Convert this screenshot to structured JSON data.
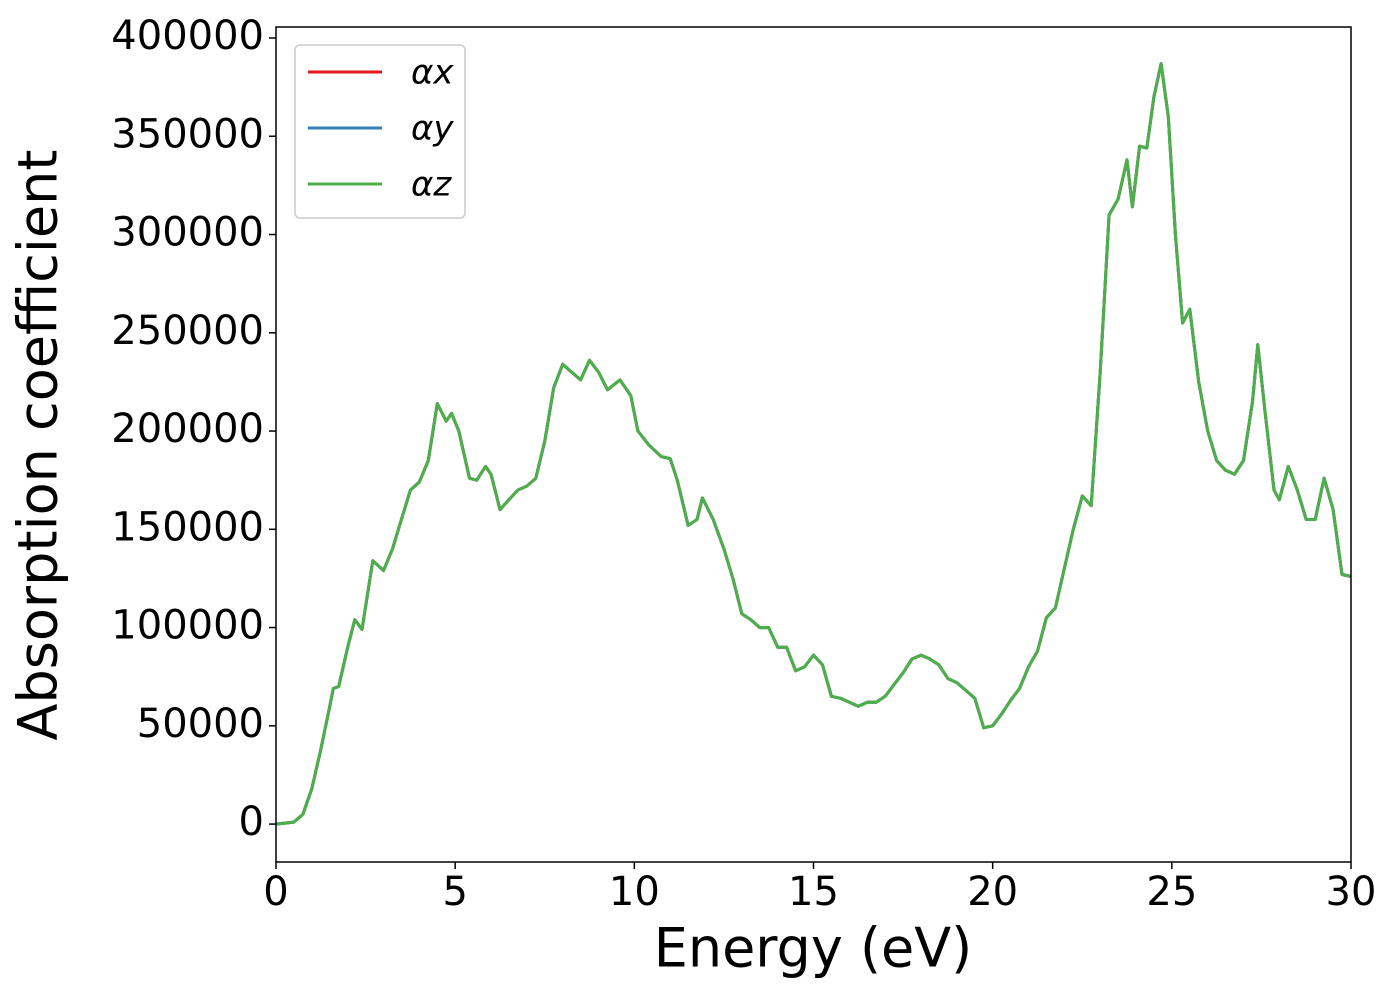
{
  "chart_data": {
    "type": "line",
    "x_label": "Energy (eV)",
    "y_label": "Absorption coefficient",
    "x": [
      0,
      0.5,
      0.75,
      1.0,
      1.25,
      1.5,
      1.6,
      1.75,
      2.0,
      2.2,
      2.4,
      2.7,
      3.0,
      3.25,
      3.5,
      3.75,
      4.0,
      4.25,
      4.5,
      4.75,
      4.9,
      5.1,
      5.4,
      5.6,
      5.85,
      6.0,
      6.25,
      6.5,
      6.75,
      7.0,
      7.25,
      7.5,
      7.75,
      8.0,
      8.25,
      8.5,
      8.75,
      9.0,
      9.25,
      9.6,
      9.9,
      10.1,
      10.4,
      10.75,
      11.0,
      11.2,
      11.5,
      11.75,
      11.9,
      12.2,
      12.5,
      12.75,
      13.0,
      13.25,
      13.5,
      13.75,
      14.0,
      14.25,
      14.5,
      14.75,
      15.0,
      15.25,
      15.5,
      15.75,
      16.0,
      16.25,
      16.5,
      16.75,
      17.0,
      17.25,
      17.5,
      17.75,
      18.0,
      18.25,
      18.5,
      18.75,
      19.0,
      19.25,
      19.5,
      19.75,
      20.0,
      20.25,
      20.5,
      20.75,
      21.0,
      21.25,
      21.5,
      21.75,
      22.0,
      22.25,
      22.5,
      22.75,
      23.0,
      23.25,
      23.5,
      23.75,
      23.9,
      24.1,
      24.3,
      24.5,
      24.7,
      24.9,
      25.1,
      25.3,
      25.5,
      25.75,
      26.0,
      26.25,
      26.5,
      26.75,
      27.0,
      27.25,
      27.4,
      27.6,
      27.85,
      28.0,
      28.25,
      28.5,
      28.75,
      29.0,
      29.25,
      29.5,
      29.75,
      30.0
    ],
    "series": [
      {
        "name": "αx",
        "color": "#e41a1c",
        "values": [
          0,
          1000,
          5000,
          18000,
          38000,
          60000,
          69000,
          70000,
          90000,
          104000,
          99000,
          134000,
          129000,
          140000,
          155000,
          170000,
          174000,
          185000,
          214000,
          205000,
          209000,
          200000,
          176000,
          175000,
          182000,
          178000,
          160000,
          165000,
          170000,
          172000,
          176000,
          195000,
          222000,
          234000,
          230000,
          226000,
          236000,
          230000,
          221000,
          226000,
          218000,
          200000,
          193000,
          187000,
          186000,
          175000,
          152000,
          155000,
          166000,
          155000,
          140000,
          125000,
          107000,
          104000,
          100000,
          100000,
          90000,
          90000,
          78000,
          80000,
          86000,
          81000,
          65000,
          64000,
          62000,
          60000,
          62000,
          62000,
          65000,
          71000,
          77000,
          84000,
          86000,
          84000,
          81000,
          74000,
          72000,
          68000,
          64000,
          49000,
          50000,
          56000,
          63000,
          69000,
          80000,
          88000,
          105000,
          110000,
          130000,
          150000,
          167000,
          162000,
          230000,
          310000,
          318000,
          338000,
          314000,
          345000,
          344000,
          370000,
          387000,
          360000,
          300000,
          255000,
          262000,
          225000,
          200000,
          185000,
          180000,
          178000,
          185000,
          215000,
          244000,
          210000,
          170000,
          165000,
          182000,
          170000,
          155000,
          155000,
          176000,
          160000,
          127000,
          126000
        ]
      },
      {
        "name": "αy",
        "color": "#377eb8",
        "values": [
          0,
          1000,
          5000,
          18000,
          38000,
          60000,
          69000,
          70000,
          90000,
          104000,
          99000,
          134000,
          129000,
          140000,
          155000,
          170000,
          174000,
          185000,
          214000,
          205000,
          209000,
          200000,
          176000,
          175000,
          182000,
          178000,
          160000,
          165000,
          170000,
          172000,
          176000,
          195000,
          222000,
          234000,
          230000,
          226000,
          236000,
          230000,
          221000,
          226000,
          218000,
          200000,
          193000,
          187000,
          186000,
          175000,
          152000,
          155000,
          166000,
          155000,
          140000,
          125000,
          107000,
          104000,
          100000,
          100000,
          90000,
          90000,
          78000,
          80000,
          86000,
          81000,
          65000,
          64000,
          62000,
          60000,
          62000,
          62000,
          65000,
          71000,
          77000,
          84000,
          86000,
          84000,
          81000,
          74000,
          72000,
          68000,
          64000,
          49000,
          50000,
          56000,
          63000,
          69000,
          80000,
          88000,
          105000,
          110000,
          130000,
          150000,
          167000,
          162000,
          230000,
          310000,
          318000,
          338000,
          314000,
          345000,
          344000,
          370000,
          387000,
          360000,
          300000,
          255000,
          262000,
          225000,
          200000,
          185000,
          180000,
          178000,
          185000,
          215000,
          244000,
          210000,
          170000,
          165000,
          182000,
          170000,
          155000,
          155000,
          176000,
          160000,
          127000,
          126000
        ]
      },
      {
        "name": "αz",
        "color": "#4daf4a",
        "values": [
          0,
          1000,
          5000,
          18000,
          38000,
          60000,
          69000,
          70000,
          90000,
          104000,
          99000,
          134000,
          129000,
          140000,
          155000,
          170000,
          174000,
          185000,
          214000,
          205000,
          209000,
          200000,
          176000,
          175000,
          182000,
          178000,
          160000,
          165000,
          170000,
          172000,
          176000,
          195000,
          222000,
          234000,
          230000,
          226000,
          236000,
          230000,
          221000,
          226000,
          218000,
          200000,
          193000,
          187000,
          186000,
          175000,
          152000,
          155000,
          166000,
          155000,
          140000,
          125000,
          107000,
          104000,
          100000,
          100000,
          90000,
          90000,
          78000,
          80000,
          86000,
          81000,
          65000,
          64000,
          62000,
          60000,
          62000,
          62000,
          65000,
          71000,
          77000,
          84000,
          86000,
          84000,
          81000,
          74000,
          72000,
          68000,
          64000,
          49000,
          50000,
          56000,
          63000,
          69000,
          80000,
          88000,
          105000,
          110000,
          130000,
          150000,
          167000,
          162000,
          230000,
          310000,
          318000,
          338000,
          314000,
          345000,
          344000,
          370000,
          387000,
          360000,
          300000,
          255000,
          262000,
          225000,
          200000,
          185000,
          180000,
          178000,
          185000,
          215000,
          244000,
          210000,
          170000,
          165000,
          182000,
          170000,
          155000,
          155000,
          176000,
          160000,
          127000,
          126000
        ]
      }
    ],
    "xlim": [
      0,
      30
    ],
    "xticks": [
      0,
      5,
      10,
      15,
      20,
      25,
      30
    ],
    "ylim": [
      -19300,
      405600
    ],
    "yticks": [
      0,
      50000,
      100000,
      150000,
      200000,
      250000,
      300000,
      350000,
      400000
    ],
    "legend": "upper left"
  }
}
